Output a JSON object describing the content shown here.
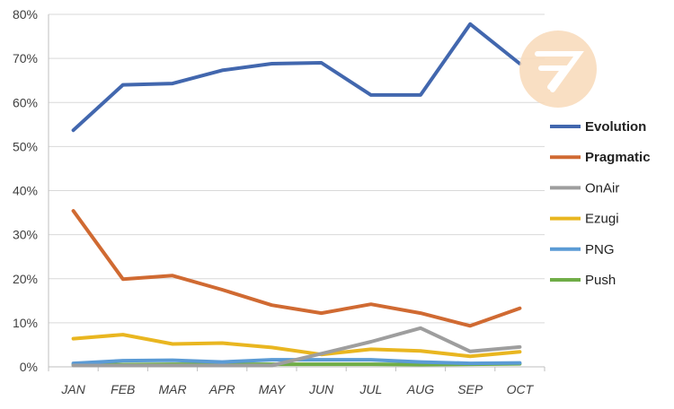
{
  "chart_data": {
    "type": "line",
    "categories": [
      "JAN",
      "FEB",
      "MAR",
      "APR",
      "MAY",
      "JUN",
      "JUL",
      "AUG",
      "SEP",
      "OCT"
    ],
    "ylim": [
      0,
      80
    ],
    "yticks": [
      0,
      10,
      20,
      30,
      40,
      50,
      60,
      70,
      80
    ],
    "ytick_labels": [
      "0%",
      "10%",
      "20%",
      "30%",
      "40%",
      "50%",
      "60%",
      "70%",
      "80%"
    ],
    "grid": true,
    "legend_position": "right",
    "series": [
      {
        "name": "Evolution",
        "color": "#4267AE",
        "bold": true,
        "values": [
          53.7,
          64.0,
          64.3,
          67.3,
          68.8,
          69.0,
          61.7,
          61.7,
          77.8,
          68.8
        ]
      },
      {
        "name": "Pragmatic",
        "color": "#D06A32",
        "bold": true,
        "values": [
          35.4,
          19.9,
          20.7,
          17.5,
          14.0,
          12.2,
          14.2,
          12.2,
          9.3,
          13.3
        ]
      },
      {
        "name": "OnAir",
        "color": "#9E9E9E",
        "bold": false,
        "values": [
          0.3,
          0.3,
          0.3,
          0.3,
          0.3,
          3.0,
          5.7,
          8.8,
          3.5,
          4.5
        ]
      },
      {
        "name": "Ezugi",
        "color": "#E9B620",
        "bold": false,
        "values": [
          6.4,
          7.3,
          5.2,
          5.4,
          4.4,
          2.8,
          4.0,
          3.6,
          2.4,
          3.4
        ]
      },
      {
        "name": "PNG",
        "color": "#5B9BD5",
        "bold": false,
        "values": [
          0.8,
          1.4,
          1.5,
          1.1,
          1.6,
          1.6,
          1.6,
          1.1,
          0.8,
          0.9
        ]
      },
      {
        "name": "Push",
        "color": "#70AD47",
        "bold": false,
        "values": [
          0.5,
          0.5,
          0.6,
          0.6,
          0.6,
          0.6,
          0.6,
          0.5,
          0.6,
          0.7
        ]
      }
    ]
  },
  "watermark": {
    "icon": "logo-arrow-icon",
    "color": "#F4C38E"
  }
}
